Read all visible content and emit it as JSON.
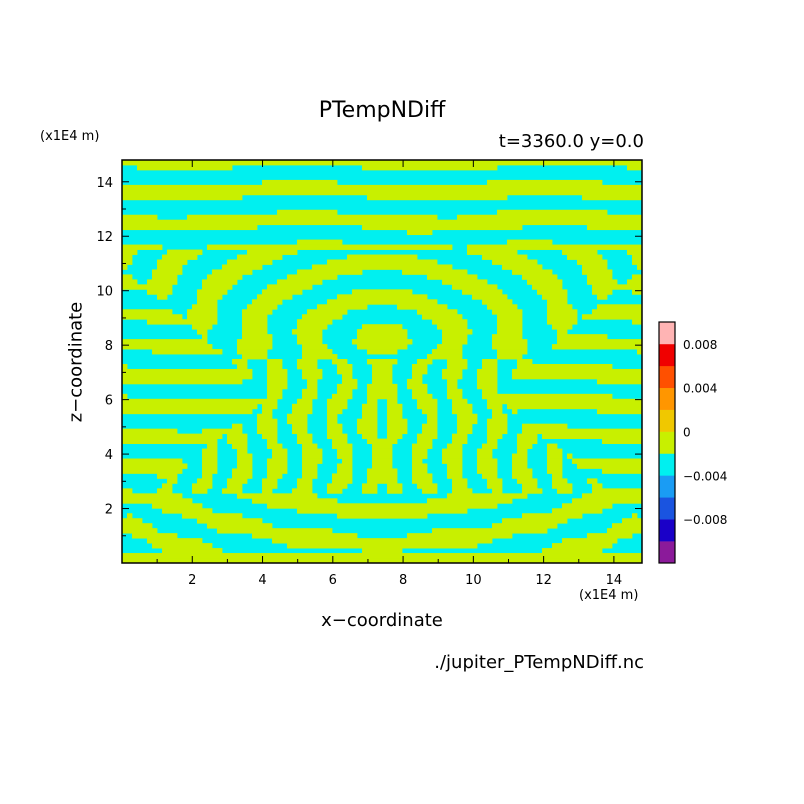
{
  "chart_data": {
    "type": "heatmap",
    "title": "PTempNDiff",
    "subtitle": "t=3360.0 y=0.0",
    "xlabel": "x−coordinate",
    "ylabel": "z−coordinate",
    "x_unit": "(x1E4 m)",
    "y_unit": "(x1E4 m)",
    "xlim": [
      0,
      14.8
    ],
    "ylim": [
      0,
      14.8
    ],
    "x_ticks": [
      2,
      4,
      6,
      8,
      10,
      12,
      14
    ],
    "y_ticks": [
      2,
      4,
      6,
      8,
      10,
      12,
      14
    ],
    "source_file": "./jupiter_PTempNDiff.nc",
    "colorbar": {
      "levels": [
        -0.01,
        -0.008,
        -0.006,
        -0.004,
        -0.002,
        0,
        0.002,
        0.004,
        0.006,
        0.008,
        0.01
      ],
      "colors": [
        "#8b1a9a",
        "#1a00c8",
        "#1a54e0",
        "#1a9cf4",
        "#00f0f0",
        "#c8f000",
        "#f0c800",
        "#ff9600",
        "#ff5000",
        "#f00000",
        "#ffb4b4"
      ],
      "tick_labels": [
        {
          "value": -0.008,
          "label": "−0.008"
        },
        {
          "value": -0.004,
          "label": "−0.004"
        },
        {
          "value": 0,
          "label": "0"
        },
        {
          "value": 0.004,
          "label": "0.004"
        },
        {
          "value": 0.008,
          "label": "0.008"
        }
      ]
    },
    "field_colors": {
      "negative": "#00f0f0",
      "positive": "#c8f000"
    }
  }
}
